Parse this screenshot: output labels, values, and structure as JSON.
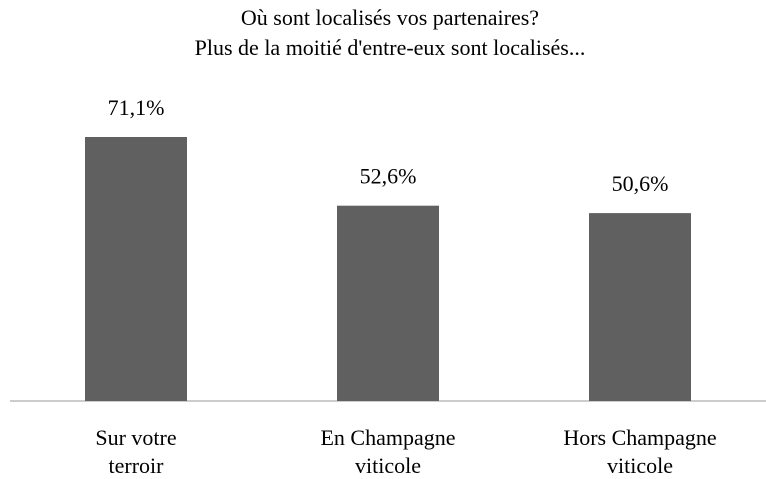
{
  "chart_data": {
    "type": "bar",
    "title": "Où sont localisés vos partenaires?",
    "subtitle": "Plus de la moitié d'entre-eux sont localisés...",
    "categories": [
      "Sur votre terroir",
      "En Champagne viticole",
      "Hors Champagne viticole"
    ],
    "values": [
      71.1,
      52.6,
      50.6
    ],
    "value_labels": [
      "71,1%",
      "52,6%",
      "50,6%"
    ],
    "color": "#606060"
  }
}
